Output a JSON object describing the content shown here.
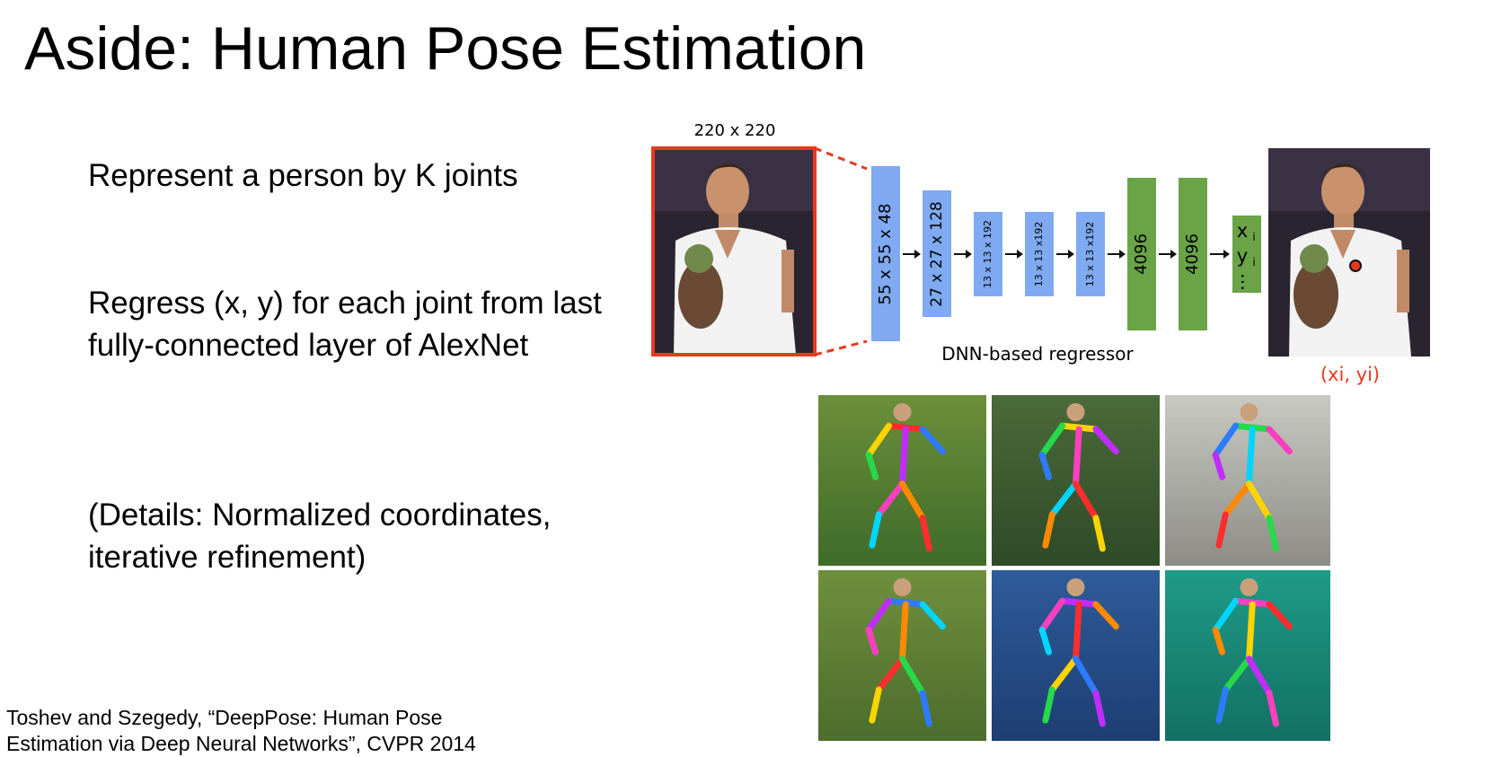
{
  "slide": {
    "title": "Aside: Human Pose Estimation",
    "bullets": [
      "Represent a person by K joints",
      "Regress (x, y) for each joint from last fully-connected layer of AlexNet",
      "(Details: Normalized coordinates, iterative refinement)"
    ],
    "citation": "Toshev and Szegedy, “DeepPose: Human Pose Estimation via Deep Neural Networks”, CVPR 2014"
  },
  "diagram": {
    "input_size_label": "220 x 220",
    "conv_layers": [
      "55 x 55 x 48",
      "27 x 27 x 128",
      "13 x 13 x 192",
      "13 x 13 x192",
      "13 x 13 x192"
    ],
    "fc_layers": [
      "4096",
      "4096"
    ],
    "output_labels": [
      "x",
      "y",
      "…"
    ],
    "output_subscript": "i",
    "regressor_label": "DNN-based regressor",
    "output_point_label": "(xi, yi)",
    "colors": {
      "conv": "#7fa9f0",
      "fc": "#6aa446",
      "input_frame": "#e8391f",
      "output_point": "#e8391f",
      "arrow": "#111111"
    }
  },
  "examples": {
    "images": [
      {
        "name": "soccer-player-1",
        "colors": [
          "#6b8f3a",
          "#3f6b2a"
        ]
      },
      {
        "name": "badminton-player",
        "colors": [
          "#4a6b3b",
          "#2f4a27"
        ]
      },
      {
        "name": "climber-wall",
        "colors": [
          "#c9c9c4",
          "#8d8d86"
        ]
      },
      {
        "name": "soccer-player-2",
        "colors": [
          "#6f8f3e",
          "#4c6d2c"
        ]
      },
      {
        "name": "tennis-player",
        "colors": [
          "#2e5c9a",
          "#1d3e72"
        ]
      },
      {
        "name": "seated-person",
        "colors": [
          "#1e9b86",
          "#137064"
        ]
      }
    ]
  }
}
